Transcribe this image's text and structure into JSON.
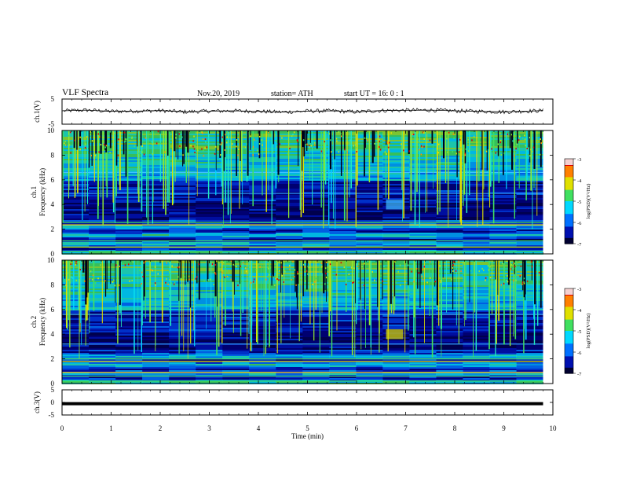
{
  "header": {
    "title": "VLF  Spectra",
    "date": "Nov.20, 2019",
    "station": "station= ATH",
    "start": "start  UT  =    16: 0   : 1"
  },
  "colors": {
    "spec_min": "#00007a",
    "spec_mid": "#00c8ff",
    "spec_high": "#33d63a",
    "spec_top": "#d40000"
  },
  "chart_data": [
    {
      "type": "line",
      "id": "ch1-waveform",
      "ylabel": "ch.1(V)",
      "ylim": [
        -5,
        5
      ],
      "yticks": [
        "5",
        "-5"
      ],
      "x": [
        0,
        0.5,
        1,
        1.5,
        2,
        2.5,
        3,
        3.5,
        4,
        4.5,
        5,
        5.5,
        6,
        6.5,
        7,
        7.5,
        8,
        8.5,
        9,
        9.5,
        9.8
      ],
      "values": [
        0.3,
        0.6,
        0.1,
        0.2,
        0.4,
        -0.1,
        0.2,
        0.3,
        0.1,
        -0.2,
        0.2,
        0.3,
        -0.1,
        0.4,
        0.5,
        0.6,
        0.3,
        0.1,
        -0.1,
        0.2,
        0.4
      ]
    },
    {
      "type": "heatmap",
      "id": "ch1-spectrogram",
      "ylabel": "Frequency  (kHz)",
      "ylabel_prefix": "ch.1",
      "ylim": [
        0,
        10
      ],
      "yticks": [
        "0",
        "2",
        "4",
        "6",
        "8",
        "10"
      ],
      "colorbar_label": "log(PSD)(V²/Hz)",
      "colorbar_ticks": [
        "-3",
        "-4",
        "-5",
        "-6",
        "-7"
      ]
    },
    {
      "type": "heatmap",
      "id": "ch2-spectrogram",
      "ylabel": "Frequency  (kHz)",
      "ylabel_prefix": "ch.2",
      "ylim": [
        0,
        10
      ],
      "yticks": [
        "0",
        "2",
        "4",
        "6",
        "8",
        "10"
      ],
      "colorbar_label": "log(PSD)(V²/Hz)",
      "colorbar_ticks": [
        "-3",
        "-4",
        "-5",
        "-6",
        "-7"
      ]
    },
    {
      "type": "line",
      "id": "ch3-waveform",
      "ylabel": "ch.3(V)",
      "ylim": [
        -5,
        5
      ],
      "yticks": [
        "5",
        "0",
        "-5"
      ],
      "x": [
        0,
        9.8
      ],
      "values": [
        -0.5,
        -0.5
      ]
    }
  ],
  "xaxis": {
    "label": "Time  (min)",
    "ticks": [
      "0",
      "1",
      "2",
      "3",
      "4",
      "5",
      "6",
      "7",
      "8",
      "9",
      "10"
    ],
    "xlim": [
      0,
      10
    ]
  }
}
